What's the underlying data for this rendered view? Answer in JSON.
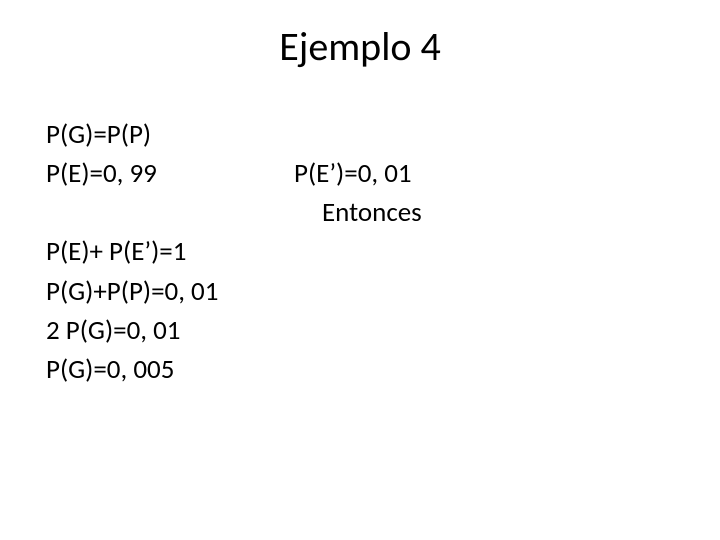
{
  "slide": {
    "title": "Ejemplo 4",
    "left": {
      "l1": "P(G)=P(P)",
      "l2": "P(E)=0, 99",
      "l3": "P(E)+ P(E’)=1",
      "l4": "P(G)+P(P)=0, 01",
      "l5": "2 P(G)=0, 01",
      "l6": "P(G)=0, 005"
    },
    "right": {
      "r1": "P(E’)=0, 01",
      "r2": "Entonces"
    },
    "colors": {
      "background": "#ffffff",
      "text": "#000000"
    },
    "fonts": {
      "title_size_pt": 40,
      "body_size_pt": 27,
      "family": "Calibri"
    }
  }
}
